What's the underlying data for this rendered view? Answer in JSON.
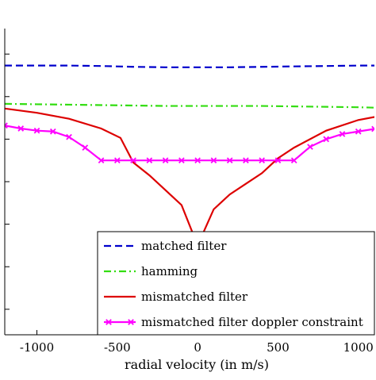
{
  "chart_data": {
    "type": "line",
    "title": "",
    "xlabel": "radial velocity (in m/s)",
    "ylabel": "",
    "xlim": [
      -1200,
      1100
    ],
    "ylim": [
      -6.6,
      0.6
    ],
    "x_ticks": [
      -1000,
      -500,
      0,
      500,
      1000
    ],
    "x_tick_labels": [
      "-1000",
      "-500",
      "0",
      "500",
      "1000"
    ],
    "y_ticks": [
      0,
      -1,
      -2,
      -3,
      -4,
      -5,
      -6
    ],
    "y_tick_labels": [],
    "grid": false,
    "legend_position": "bottom-right",
    "series": [
      {
        "name": "matched filter",
        "color": "#0000cc",
        "dash": "dashed",
        "marker": "none",
        "x": [
          -1200,
          -1000,
          -800,
          -600,
          -400,
          -200,
          0,
          200,
          400,
          600,
          800,
          1000,
          1100
        ],
        "y": [
          -0.27,
          -0.27,
          -0.27,
          -0.28,
          -0.3,
          -0.31,
          -0.31,
          -0.31,
          -0.3,
          -0.29,
          -0.28,
          -0.27,
          -0.27
        ]
      },
      {
        "name": "hamming",
        "color": "#33dd11",
        "dash": "dashdot",
        "marker": "none",
        "x": [
          -1200,
          -1000,
          -800,
          -600,
          -400,
          -200,
          0,
          200,
          400,
          600,
          800,
          1000,
          1100
        ],
        "y": [
          -1.17,
          -1.18,
          -1.19,
          -1.2,
          -1.21,
          -1.22,
          -1.22,
          -1.22,
          -1.22,
          -1.23,
          -1.24,
          -1.25,
          -1.26
        ]
      },
      {
        "name": "mismatched filter",
        "color": "#dd0000",
        "dash": "solid",
        "marker": "none",
        "x": [
          -1200,
          -1000,
          -800,
          -600,
          -480,
          -400,
          -300,
          -200,
          -100,
          0,
          100,
          200,
          300,
          400,
          500,
          600,
          800,
          1000,
          1100
        ],
        "y": [
          -1.28,
          -1.38,
          -1.52,
          -1.75,
          -1.97,
          -2.55,
          -2.85,
          -3.2,
          -3.55,
          -4.5,
          -3.65,
          -3.3,
          -3.05,
          -2.8,
          -2.45,
          -2.2,
          -1.8,
          -1.55,
          -1.48
        ]
      },
      {
        "name": "mismatched filter doppler constraint",
        "color": "#ff00ff",
        "dash": "solid",
        "marker": "x",
        "x": [
          -1200,
          -1100,
          -1000,
          -900,
          -800,
          -700,
          -600,
          -500,
          -400,
          -300,
          -200,
          -100,
          0,
          100,
          200,
          300,
          400,
          500,
          600,
          700,
          800,
          900,
          1000,
          1100
        ],
        "y": [
          -1.68,
          -1.75,
          -1.8,
          -1.82,
          -1.95,
          -2.2,
          -2.5,
          -2.5,
          -2.5,
          -2.5,
          -2.5,
          -2.5,
          -2.5,
          -2.5,
          -2.5,
          -2.5,
          -2.5,
          -2.5,
          -2.5,
          -2.18,
          -2.0,
          -1.88,
          -1.82,
          -1.76
        ]
      }
    ]
  }
}
